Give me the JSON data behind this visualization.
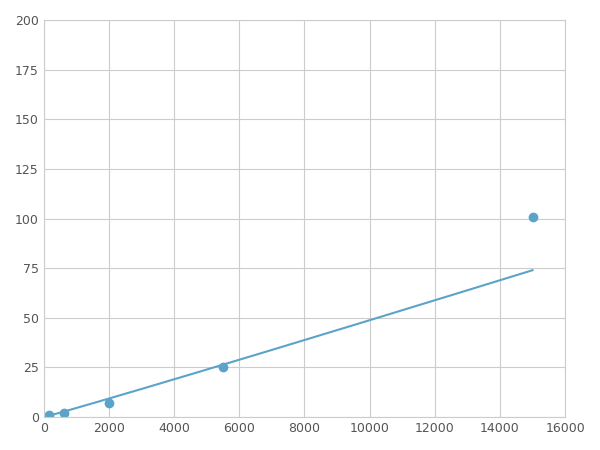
{
  "x_data": [
    156,
    625,
    2000,
    5500,
    15000
  ],
  "y_data": [
    1,
    2,
    7,
    25,
    101
  ],
  "line_color": "#5ba3c9",
  "marker_color": "#5ba3c9",
  "marker_size": 6,
  "xlim": [
    0,
    16000
  ],
  "ylim": [
    0,
    200
  ],
  "xticks": [
    0,
    2000,
    4000,
    6000,
    8000,
    10000,
    12000,
    14000,
    16000
  ],
  "yticks": [
    0,
    25,
    50,
    75,
    100,
    125,
    150,
    175,
    200
  ],
  "grid": true,
  "background_color": "#ffffff",
  "grid_color": "#cccccc",
  "tick_labelsize": 9,
  "tick_color": "#555555",
  "line_width": 1.5
}
